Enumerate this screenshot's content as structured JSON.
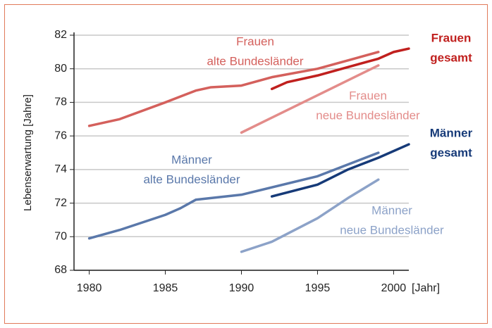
{
  "chart_data": {
    "type": "line",
    "ylabel": "Lebenserwartung [Jahre]",
    "xlabel": "[Jahr]",
    "xlim": [
      1979,
      2001
    ],
    "xticks": [
      1980,
      1985,
      1990,
      1995,
      2000
    ],
    "ylim": [
      68,
      82
    ],
    "yticks": [
      68,
      70,
      72,
      74,
      76,
      78,
      80,
      82
    ],
    "grid": true,
    "series": [
      {
        "name": [
          "Frauen",
          "alte Bundesländer"
        ],
        "color": "#d4605c",
        "x": [
          1980,
          1982,
          1985,
          1987,
          1988,
          1990,
          1992,
          1995,
          1997,
          1999
        ],
        "values": [
          76.6,
          77.0,
          78.0,
          78.7,
          78.9,
          79.0,
          79.5,
          80.0,
          80.5,
          81.0
        ]
      },
      {
        "name": [
          "Frauen",
          "gesamt"
        ],
        "color": "#c0201e",
        "x": [
          1992,
          1993,
          1995,
          1997,
          1999,
          2000,
          2001
        ],
        "values": [
          78.8,
          79.2,
          79.6,
          80.1,
          80.6,
          81.0,
          81.2
        ]
      },
      {
        "name": [
          "Frauen",
          "neue Bundesländer"
        ],
        "color": "#e38c8a",
        "x": [
          1990,
          1999
        ],
        "values": [
          76.2,
          80.2
        ]
      },
      {
        "name": [
          "Männer",
          "alte Bundesländer"
        ],
        "color": "#5a78aa",
        "x": [
          1980,
          1982,
          1985,
          1986,
          1987,
          1990,
          1995,
          1999
        ],
        "values": [
          69.9,
          70.4,
          71.3,
          71.7,
          72.2,
          72.5,
          73.6,
          75.0
        ]
      },
      {
        "name": [
          "Männer",
          "gesamt"
        ],
        "color": "#163a78",
        "x": [
          1992,
          1995,
          1997,
          1999,
          2001
        ],
        "values": [
          72.4,
          73.1,
          74.0,
          74.7,
          75.5
        ]
      },
      {
        "name": [
          "Männer",
          "neue Bundesländer"
        ],
        "color": "#8ca2c8",
        "x": [
          1990,
          1992,
          1995,
          1997,
          1999
        ],
        "values": [
          69.1,
          69.7,
          71.1,
          72.3,
          73.4
        ]
      }
    ]
  }
}
